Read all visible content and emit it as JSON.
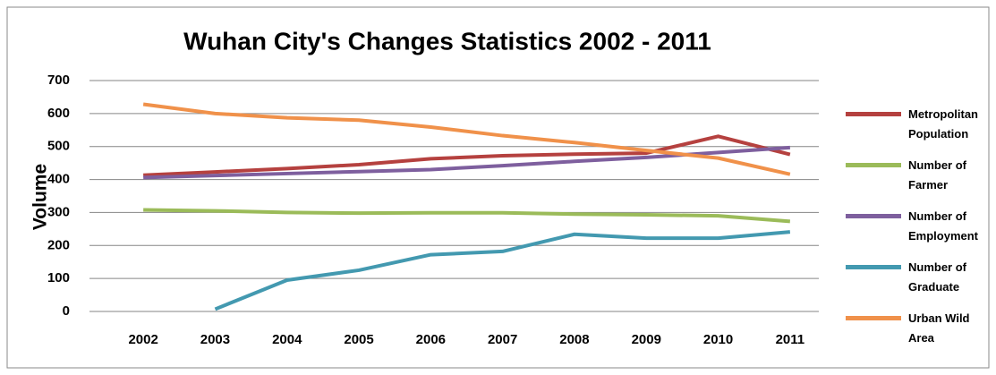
{
  "chart_data": {
    "type": "line",
    "title": "Wuhan City's Changes Statistics 2002 - 2011",
    "y_label": "Volume",
    "categories": [
      "2002",
      "2003",
      "2004",
      "2005",
      "2006",
      "2007",
      "2008",
      "2009",
      "2010",
      "2011"
    ],
    "series": [
      {
        "name": "Metropolitan Population",
        "color": "#b5413f",
        "values": [
          413,
          423,
          433,
          445,
          463,
          472,
          477,
          480,
          531,
          476
        ]
      },
      {
        "name": "Number of Farmer",
        "color": "#9bbb59",
        "values": [
          308,
          305,
          300,
          298,
          299,
          299,
          295,
          293,
          290,
          273
        ]
      },
      {
        "name": "Number of Employment",
        "color": "#7e5f9e",
        "values": [
          406,
          412,
          418,
          424,
          430,
          442,
          455,
          467,
          482,
          497
        ]
      },
      {
        "name": "Number of Graduate",
        "color": "#4399b0",
        "values": [
          null,
          7,
          95,
          125,
          172,
          182,
          234,
          222,
          222,
          241
        ]
      },
      {
        "name": "Urban Wild Area",
        "color": "#f0914a",
        "values": [
          628,
          600,
          587,
          580,
          559,
          533,
          512,
          488,
          465,
          416
        ]
      }
    ],
    "ylim": [
      0,
      700
    ],
    "yticks": [
      0,
      100,
      200,
      300,
      400,
      500,
      600,
      700
    ],
    "grid": true
  }
}
